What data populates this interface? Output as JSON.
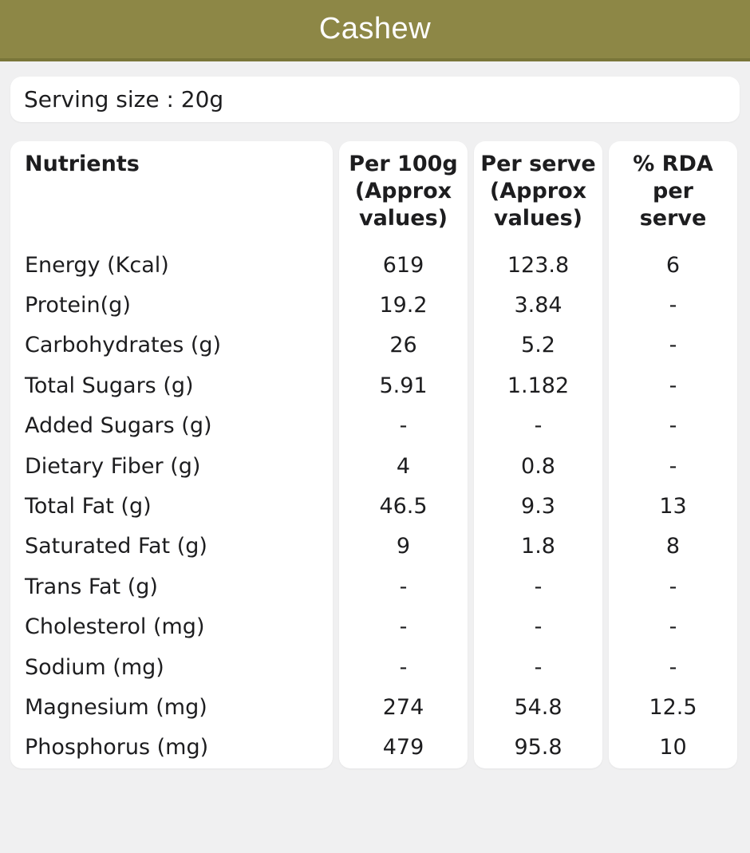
{
  "app": {
    "title": "Cashew"
  },
  "serving": {
    "label": "Serving size : 20g"
  },
  "table": {
    "columns": [
      {
        "key": "nutrient",
        "label": "Nutrients"
      },
      {
        "key": "per_100g",
        "label": "Per 100g\n(Approx\nvalues)"
      },
      {
        "key": "per_serve",
        "label": "Per serve\n(Approx\nvalues)"
      },
      {
        "key": "rda",
        "label": "% RDA\nper\nserve"
      }
    ],
    "rows": [
      {
        "nutrient": "Energy (Kcal)",
        "per_100g": "619",
        "per_serve": "123.8",
        "rda": "6"
      },
      {
        "nutrient": "Protein(g)",
        "per_100g": "19.2",
        "per_serve": "3.84",
        "rda": "-"
      },
      {
        "nutrient": "Carbohydrates (g)",
        "per_100g": "26",
        "per_serve": "5.2",
        "rda": "-"
      },
      {
        "nutrient": "Total Sugars (g)",
        "per_100g": "5.91",
        "per_serve": "1.182",
        "rda": "-"
      },
      {
        "nutrient": "Added Sugars (g)",
        "per_100g": "-",
        "per_serve": "-",
        "rda": "-"
      },
      {
        "nutrient": "Dietary Fiber (g)",
        "per_100g": "4",
        "per_serve": "0.8",
        "rda": "-"
      },
      {
        "nutrient": "Total Fat (g)",
        "per_100g": "46.5",
        "per_serve": "9.3",
        "rda": "13"
      },
      {
        "nutrient": "Saturated Fat (g)",
        "per_100g": "9",
        "per_serve": "1.8",
        "rda": "8"
      },
      {
        "nutrient": "Trans Fat (g)",
        "per_100g": "-",
        "per_serve": "-",
        "rda": "-"
      },
      {
        "nutrient": "Cholesterol (mg)",
        "per_100g": "-",
        "per_serve": "-",
        "rda": "-"
      },
      {
        "nutrient": "Sodium (mg)",
        "per_100g": "-",
        "per_serve": "-",
        "rda": "-"
      },
      {
        "nutrient": "Magnesium (mg)",
        "per_100g": "274",
        "per_serve": "54.8",
        "rda": "12.5"
      },
      {
        "nutrient": "Phosphorus (mg)",
        "per_100g": "479",
        "per_serve": "95.8",
        "rda": "10"
      }
    ]
  },
  "colors": {
    "header_bg": "#8d8746",
    "header_border": "#7a7639",
    "page_bg": "#f0f0f1",
    "card_bg": "#ffffff",
    "text": "#1d1d1f",
    "title_text": "#fdfdfd"
  }
}
